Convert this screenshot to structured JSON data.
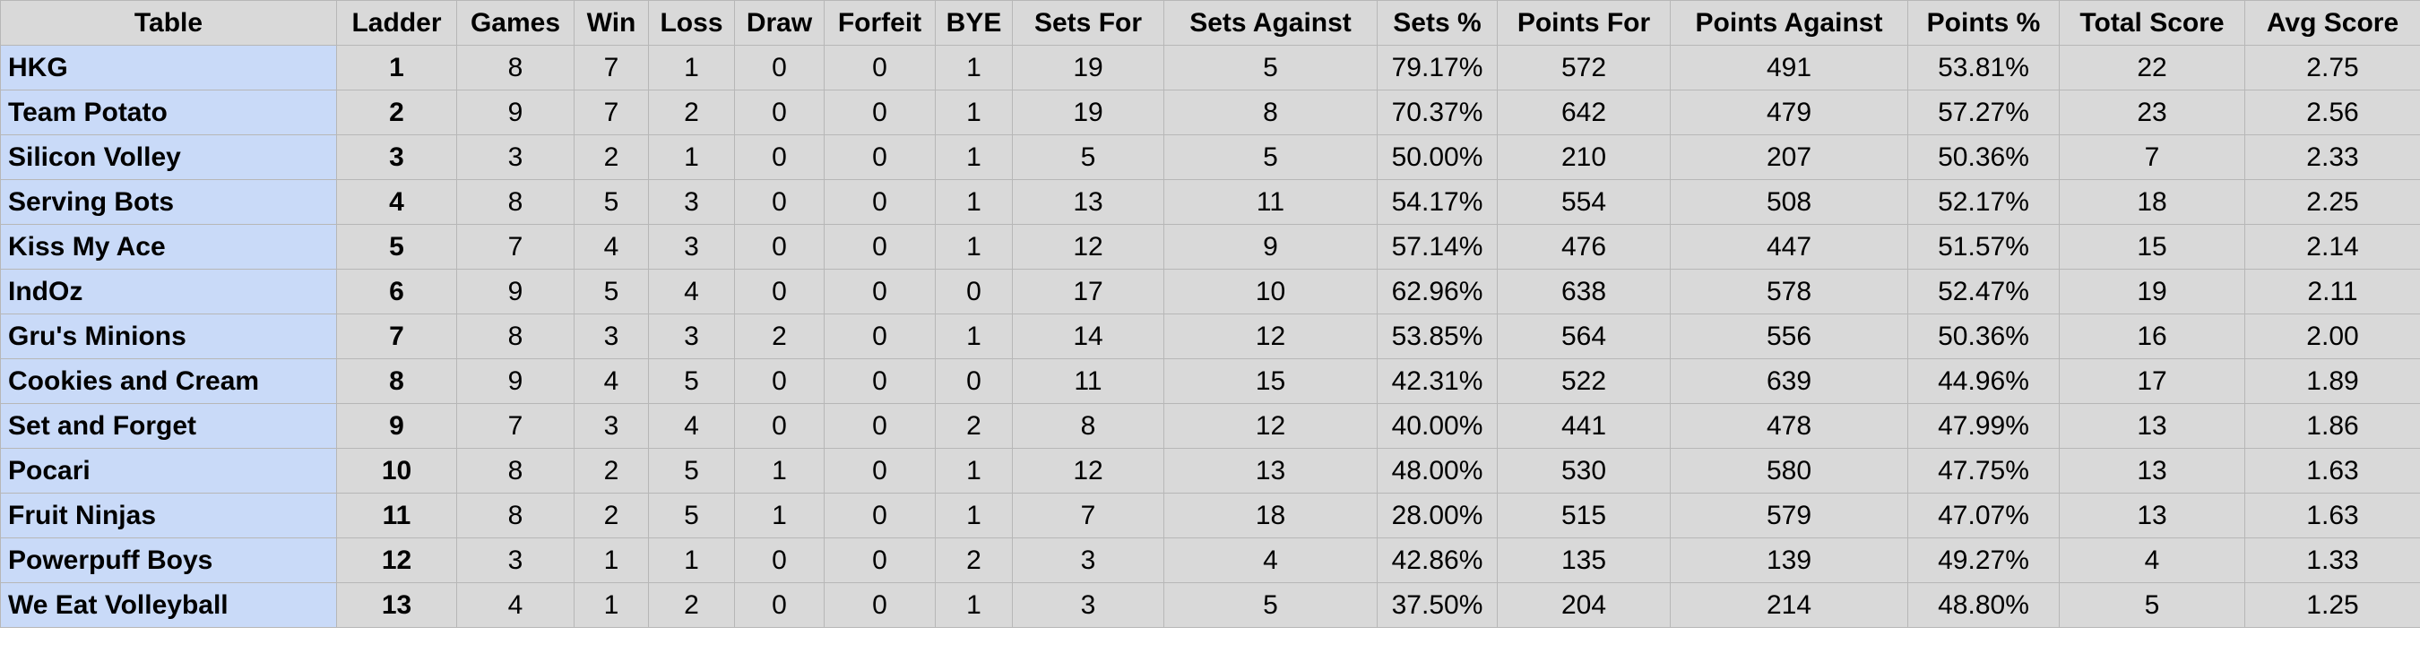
{
  "table": {
    "header": [
      "Table",
      "Ladder",
      "Games",
      "Win",
      "Loss",
      "Draw",
      "Forfeit",
      "BYE",
      "Sets For",
      "Sets Against",
      "Sets %",
      "Points For",
      "Points Against",
      "Points %",
      "Total Score",
      "Avg Score"
    ],
    "rows": [
      [
        "HKG",
        "1",
        "8",
        "7",
        "1",
        "0",
        "0",
        "1",
        "19",
        "5",
        "79.17%",
        "572",
        "491",
        "53.81%",
        "22",
        "2.75"
      ],
      [
        "Team Potato",
        "2",
        "9",
        "7",
        "2",
        "0",
        "0",
        "1",
        "19",
        "8",
        "70.37%",
        "642",
        "479",
        "57.27%",
        "23",
        "2.56"
      ],
      [
        "Silicon Volley",
        "3",
        "3",
        "2",
        "1",
        "0",
        "0",
        "1",
        "5",
        "5",
        "50.00%",
        "210",
        "207",
        "50.36%",
        "7",
        "2.33"
      ],
      [
        "Serving Bots",
        "4",
        "8",
        "5",
        "3",
        "0",
        "0",
        "1",
        "13",
        "11",
        "54.17%",
        "554",
        "508",
        "52.17%",
        "18",
        "2.25"
      ],
      [
        "Kiss My Ace",
        "5",
        "7",
        "4",
        "3",
        "0",
        "0",
        "1",
        "12",
        "9",
        "57.14%",
        "476",
        "447",
        "51.57%",
        "15",
        "2.14"
      ],
      [
        "IndOz",
        "6",
        "9",
        "5",
        "4",
        "0",
        "0",
        "0",
        "17",
        "10",
        "62.96%",
        "638",
        "578",
        "52.47%",
        "19",
        "2.11"
      ],
      [
        "Gru's Minions",
        "7",
        "8",
        "3",
        "3",
        "2",
        "0",
        "1",
        "14",
        "12",
        "53.85%",
        "564",
        "556",
        "50.36%",
        "16",
        "2.00"
      ],
      [
        "Cookies and Cream",
        "8",
        "9",
        "4",
        "5",
        "0",
        "0",
        "0",
        "11",
        "15",
        "42.31%",
        "522",
        "639",
        "44.96%",
        "17",
        "1.89"
      ],
      [
        "Set and Forget",
        "9",
        "7",
        "3",
        "4",
        "0",
        "0",
        "2",
        "8",
        "12",
        "40.00%",
        "441",
        "478",
        "47.99%",
        "13",
        "1.86"
      ],
      [
        "Pocari",
        "10",
        "8",
        "2",
        "5",
        "1",
        "0",
        "1",
        "12",
        "13",
        "48.00%",
        "530",
        "580",
        "47.75%",
        "13",
        "1.63"
      ],
      [
        "Fruit Ninjas",
        "11",
        "8",
        "2",
        "5",
        "1",
        "0",
        "1",
        "7",
        "18",
        "28.00%",
        "515",
        "579",
        "47.07%",
        "13",
        "1.63"
      ],
      [
        "Powerpuff Boys",
        "12",
        "3",
        "1",
        "1",
        "0",
        "0",
        "2",
        "3",
        "4",
        "42.86%",
        "135",
        "139",
        "49.27%",
        "4",
        "1.33"
      ],
      [
        "We Eat Volleyball",
        "13",
        "4",
        "1",
        "2",
        "0",
        "0",
        "1",
        "3",
        "5",
        "37.50%",
        "204",
        "214",
        "48.80%",
        "5",
        "1.25"
      ]
    ]
  }
}
